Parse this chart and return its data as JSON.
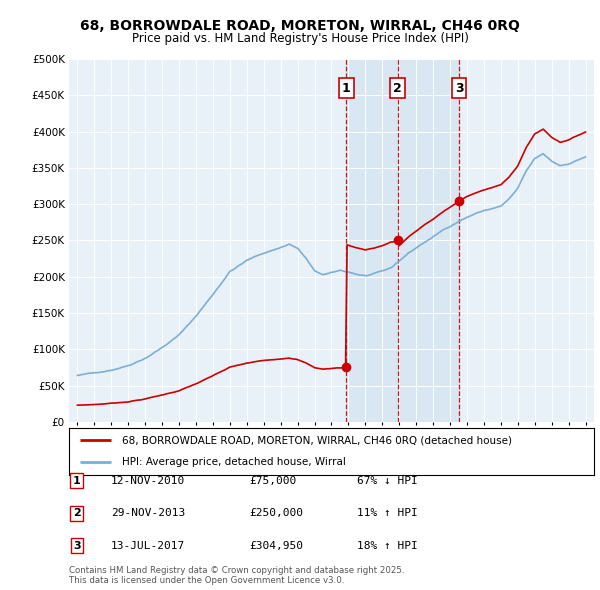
{
  "title": "68, BORROWDALE ROAD, MORETON, WIRRAL, CH46 0RQ",
  "subtitle": "Price paid vs. HM Land Registry's House Price Index (HPI)",
  "legend_property": "68, BORROWDALE ROAD, MORETON, WIRRAL, CH46 0RQ (detached house)",
  "legend_hpi": "HPI: Average price, detached house, Wirral",
  "footer": "Contains HM Land Registry data © Crown copyright and database right 2025.\nThis data is licensed under the Open Government Licence v3.0.",
  "property_color": "#cc0000",
  "hpi_color": "#7bafd4",
  "shade_color": "#ddeeff",
  "background_color": "#e8f0f8",
  "sales": [
    {
      "num": 1,
      "date": "12-NOV-2010",
      "price": 75000,
      "pct": "67%",
      "dir": "↓",
      "year": 2010.87
    },
    {
      "num": 2,
      "date": "29-NOV-2013",
      "price": 250000,
      "pct": "11%",
      "dir": "↑",
      "year": 2013.91
    },
    {
      "num": 3,
      "date": "13-JUL-2017",
      "price": 304950,
      "pct": "18%",
      "dir": "↑",
      "year": 2017.53
    }
  ],
  "hpi_x": [
    1995.0,
    1995.08,
    1995.17,
    1995.25,
    1995.33,
    1995.42,
    1995.5,
    1995.58,
    1995.67,
    1995.75,
    1995.83,
    1995.92,
    1996.0,
    1996.08,
    1996.17,
    1996.25,
    1996.33,
    1996.42,
    1996.5,
    1996.58,
    1996.67,
    1996.75,
    1996.83,
    1996.92,
    1997.0,
    1997.08,
    1997.17,
    1997.25,
    1997.33,
    1997.42,
    1997.5,
    1997.58,
    1997.67,
    1997.75,
    1997.83,
    1997.92,
    1998.0,
    1998.08,
    1998.17,
    1998.25,
    1998.33,
    1998.42,
    1998.5,
    1998.58,
    1998.67,
    1998.75,
    1998.83,
    1998.92,
    1999.0,
    1999.08,
    1999.17,
    1999.25,
    1999.33,
    1999.42,
    1999.5,
    1999.58,
    1999.67,
    1999.75,
    1999.83,
    1999.92,
    2000.0,
    2000.08,
    2000.17,
    2000.25,
    2000.33,
    2000.42,
    2000.5,
    2000.58,
    2000.67,
    2000.75,
    2000.83,
    2000.92,
    2001.0,
    2001.08,
    2001.17,
    2001.25,
    2001.33,
    2001.42,
    2001.5,
    2001.58,
    2001.67,
    2001.75,
    2001.83,
    2001.92,
    2002.0,
    2002.08,
    2002.17,
    2002.25,
    2002.33,
    2002.42,
    2002.5,
    2002.58,
    2002.67,
    2002.75,
    2002.83,
    2002.92,
    2003.0,
    2003.08,
    2003.17,
    2003.25,
    2003.33,
    2003.42,
    2003.5,
    2003.58,
    2003.67,
    2003.75,
    2003.83,
    2003.92,
    2004.0,
    2004.08,
    2004.17,
    2004.25,
    2004.33,
    2004.42,
    2004.5,
    2004.58,
    2004.67,
    2004.75,
    2004.83,
    2004.92,
    2005.0,
    2005.08,
    2005.17,
    2005.25,
    2005.33,
    2005.42,
    2005.5,
    2005.58,
    2005.67,
    2005.75,
    2005.83,
    2005.92,
    2006.0,
    2006.08,
    2006.17,
    2006.25,
    2006.33,
    2006.42,
    2006.5,
    2006.58,
    2006.67,
    2006.75,
    2006.83,
    2006.92,
    2007.0,
    2007.08,
    2007.17,
    2007.25,
    2007.33,
    2007.42,
    2007.5,
    2007.58,
    2007.67,
    2007.75,
    2007.83,
    2007.92,
    2008.0,
    2008.08,
    2008.17,
    2008.25,
    2008.33,
    2008.42,
    2008.5,
    2008.58,
    2008.67,
    2008.75,
    2008.83,
    2008.92,
    2009.0,
    2009.08,
    2009.17,
    2009.25,
    2009.33,
    2009.42,
    2009.5,
    2009.58,
    2009.67,
    2009.75,
    2009.83,
    2009.92,
    2010.0,
    2010.08,
    2010.17,
    2010.25,
    2010.33,
    2010.42,
    2010.5,
    2010.58,
    2010.67,
    2010.75,
    2010.83,
    2010.92,
    2011.0,
    2011.08,
    2011.17,
    2011.25,
    2011.33,
    2011.42,
    2011.5,
    2011.58,
    2011.67,
    2011.75,
    2011.83,
    2011.92,
    2012.0,
    2012.08,
    2012.17,
    2012.25,
    2012.33,
    2012.42,
    2012.5,
    2012.58,
    2012.67,
    2012.75,
    2012.83,
    2012.92,
    2013.0,
    2013.08,
    2013.17,
    2013.25,
    2013.33,
    2013.42,
    2013.5,
    2013.58,
    2013.67,
    2013.75,
    2013.83,
    2013.92,
    2014.0,
    2014.08,
    2014.17,
    2014.25,
    2014.33,
    2014.42,
    2014.5,
    2014.58,
    2014.67,
    2014.75,
    2014.83,
    2014.92,
    2015.0,
    2015.08,
    2015.17,
    2015.25,
    2015.33,
    2015.42,
    2015.5,
    2015.58,
    2015.67,
    2015.75,
    2015.83,
    2015.92,
    2016.0,
    2016.08,
    2016.17,
    2016.25,
    2016.33,
    2016.42,
    2016.5,
    2016.58,
    2016.67,
    2016.75,
    2016.83,
    2016.92,
    2017.0,
    2017.08,
    2017.17,
    2017.25,
    2017.33,
    2017.42,
    2017.5,
    2017.58,
    2017.67,
    2017.75,
    2017.83,
    2017.92,
    2018.0,
    2018.08,
    2018.17,
    2018.25,
    2018.33,
    2018.42,
    2018.5,
    2018.58,
    2018.67,
    2018.75,
    2018.83,
    2018.92,
    2019.0,
    2019.08,
    2019.17,
    2019.25,
    2019.33,
    2019.42,
    2019.5,
    2019.58,
    2019.67,
    2019.75,
    2019.83,
    2019.92,
    2020.0,
    2020.08,
    2020.17,
    2020.25,
    2020.33,
    2020.42,
    2020.5,
    2020.58,
    2020.67,
    2020.75,
    2020.83,
    2020.92,
    2021.0,
    2021.08,
    2021.17,
    2021.25,
    2021.33,
    2021.42,
    2021.5,
    2021.58,
    2021.67,
    2021.75,
    2021.83,
    2021.92,
    2022.0,
    2022.08,
    2022.17,
    2022.25,
    2022.33,
    2022.42,
    2022.5,
    2022.58,
    2022.67,
    2022.75,
    2022.83,
    2022.92,
    2023.0,
    2023.08,
    2023.17,
    2023.25,
    2023.33,
    2023.42,
    2023.5,
    2023.58,
    2023.67,
    2023.75,
    2023.83,
    2023.92,
    2024.0,
    2024.08,
    2024.17,
    2024.25,
    2024.33,
    2024.42,
    2024.5,
    2024.58,
    2024.67,
    2024.75,
    2024.83,
    2024.92,
    2025.0
  ],
  "ylim": [
    0,
    500000
  ],
  "yticks": [
    0,
    50000,
    100000,
    150000,
    200000,
    250000,
    300000,
    350000,
    400000,
    450000,
    500000
  ],
  "xlim": [
    1994.5,
    2025.5
  ]
}
